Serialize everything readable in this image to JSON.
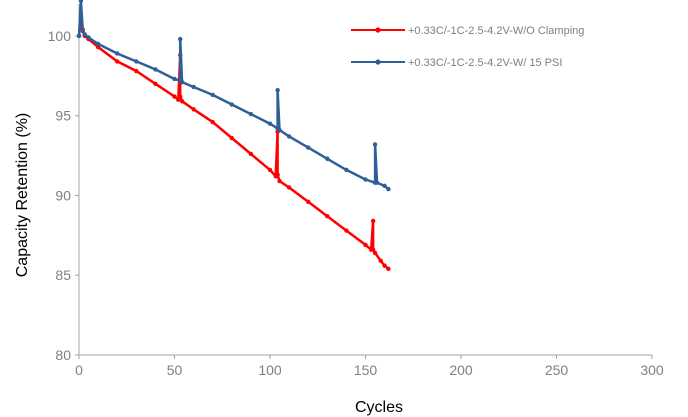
{
  "chart_data": {
    "type": "line",
    "title": "",
    "xlabel": "Cycles",
    "ylabel": "Capacity Retention (%)",
    "xlim": [
      0,
      300
    ],
    "ylim": [
      80,
      102
    ],
    "x_ticks": [
      0,
      50,
      100,
      150,
      200,
      250,
      300
    ],
    "y_ticks": [
      80,
      85,
      90,
      95,
      100
    ],
    "grid": false,
    "legend_position": "top-right",
    "series": [
      {
        "name": "+0.33C/-1C-2.5-4.2V-W/O Clamping",
        "color": "#ff0000",
        "x": [
          0,
          1,
          2,
          3,
          5,
          10,
          20,
          30,
          40,
          50,
          52,
          53,
          53,
          54,
          60,
          70,
          80,
          90,
          100,
          103,
          104,
          104,
          105,
          110,
          120,
          130,
          140,
          150,
          153,
          154,
          154,
          155,
          158,
          160,
          162
        ],
        "y": [
          100,
          101.2,
          100.4,
          100,
          99.8,
          99.3,
          98.4,
          97.8,
          97,
          96.2,
          96,
          98.8,
          96.2,
          95.9,
          95.4,
          94.6,
          93.6,
          92.6,
          91.6,
          91.2,
          94,
          91.3,
          90.9,
          90.5,
          89.6,
          88.7,
          87.8,
          86.9,
          86.6,
          88.4,
          86.6,
          86.4,
          85.9,
          85.6,
          85.4
        ]
      },
      {
        "name": "+0.33C/-1C-2.5-4.2V-W/ 15 PSI",
        "color": "#2e5f99",
        "x": [
          0,
          1,
          2,
          3,
          5,
          10,
          20,
          30,
          40,
          50,
          53,
          53,
          54,
          60,
          70,
          80,
          90,
          100,
          104,
          104,
          105,
          110,
          120,
          130,
          140,
          150,
          155,
          155,
          156,
          160,
          162
        ],
        "y": [
          100,
          102.2,
          100.3,
          100.1,
          99.9,
          99.5,
          98.9,
          98.4,
          97.9,
          97.3,
          97.2,
          99.8,
          97.1,
          96.8,
          96.3,
          95.7,
          95.1,
          94.5,
          94.2,
          96.6,
          94.1,
          93.7,
          93,
          92.3,
          91.6,
          91,
          90.8,
          93.2,
          90.8,
          90.6,
          90.4
        ]
      }
    ]
  }
}
